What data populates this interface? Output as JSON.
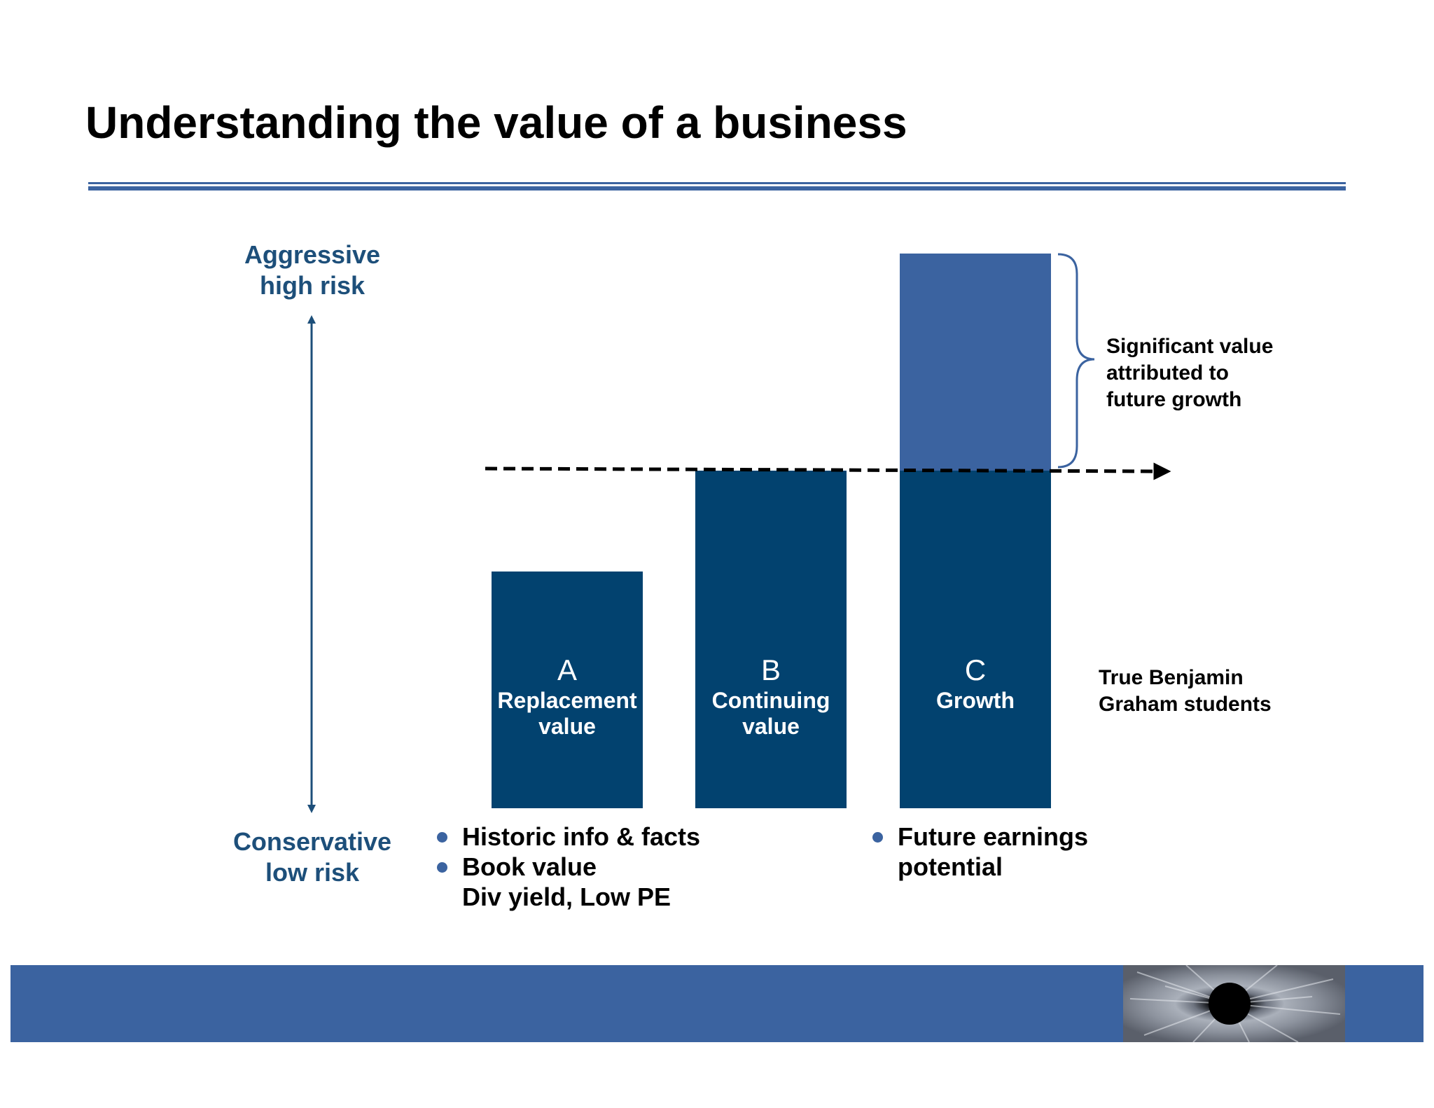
{
  "title": "Understanding the value of a business",
  "axis": {
    "top": [
      "Aggressive",
      "high risk"
    ],
    "bottom": [
      "Conservative",
      "low risk"
    ]
  },
  "bars": [
    {
      "letter": "A",
      "caption": [
        "Replacement",
        "value"
      ]
    },
    {
      "letter": "B",
      "caption": [
        "Continuing",
        "value"
      ]
    },
    {
      "letter": "C",
      "caption": [
        "Growth"
      ]
    }
  ],
  "growth_note": [
    "Significant value",
    "attributed to",
    "future growth"
  ],
  "graham_note": [
    "True Benjamin",
    "Graham students"
  ],
  "left_bullets": [
    "Historic info & facts",
    "Book value",
    "Div yield, Low PE"
  ],
  "right_bullets": [
    "Future earnings",
    "potential"
  ],
  "colors": {
    "bar": "#02426f",
    "growth_segment": "#3b63a0",
    "band": "#3b63a0",
    "axis_text": "#1d4f7a"
  }
}
